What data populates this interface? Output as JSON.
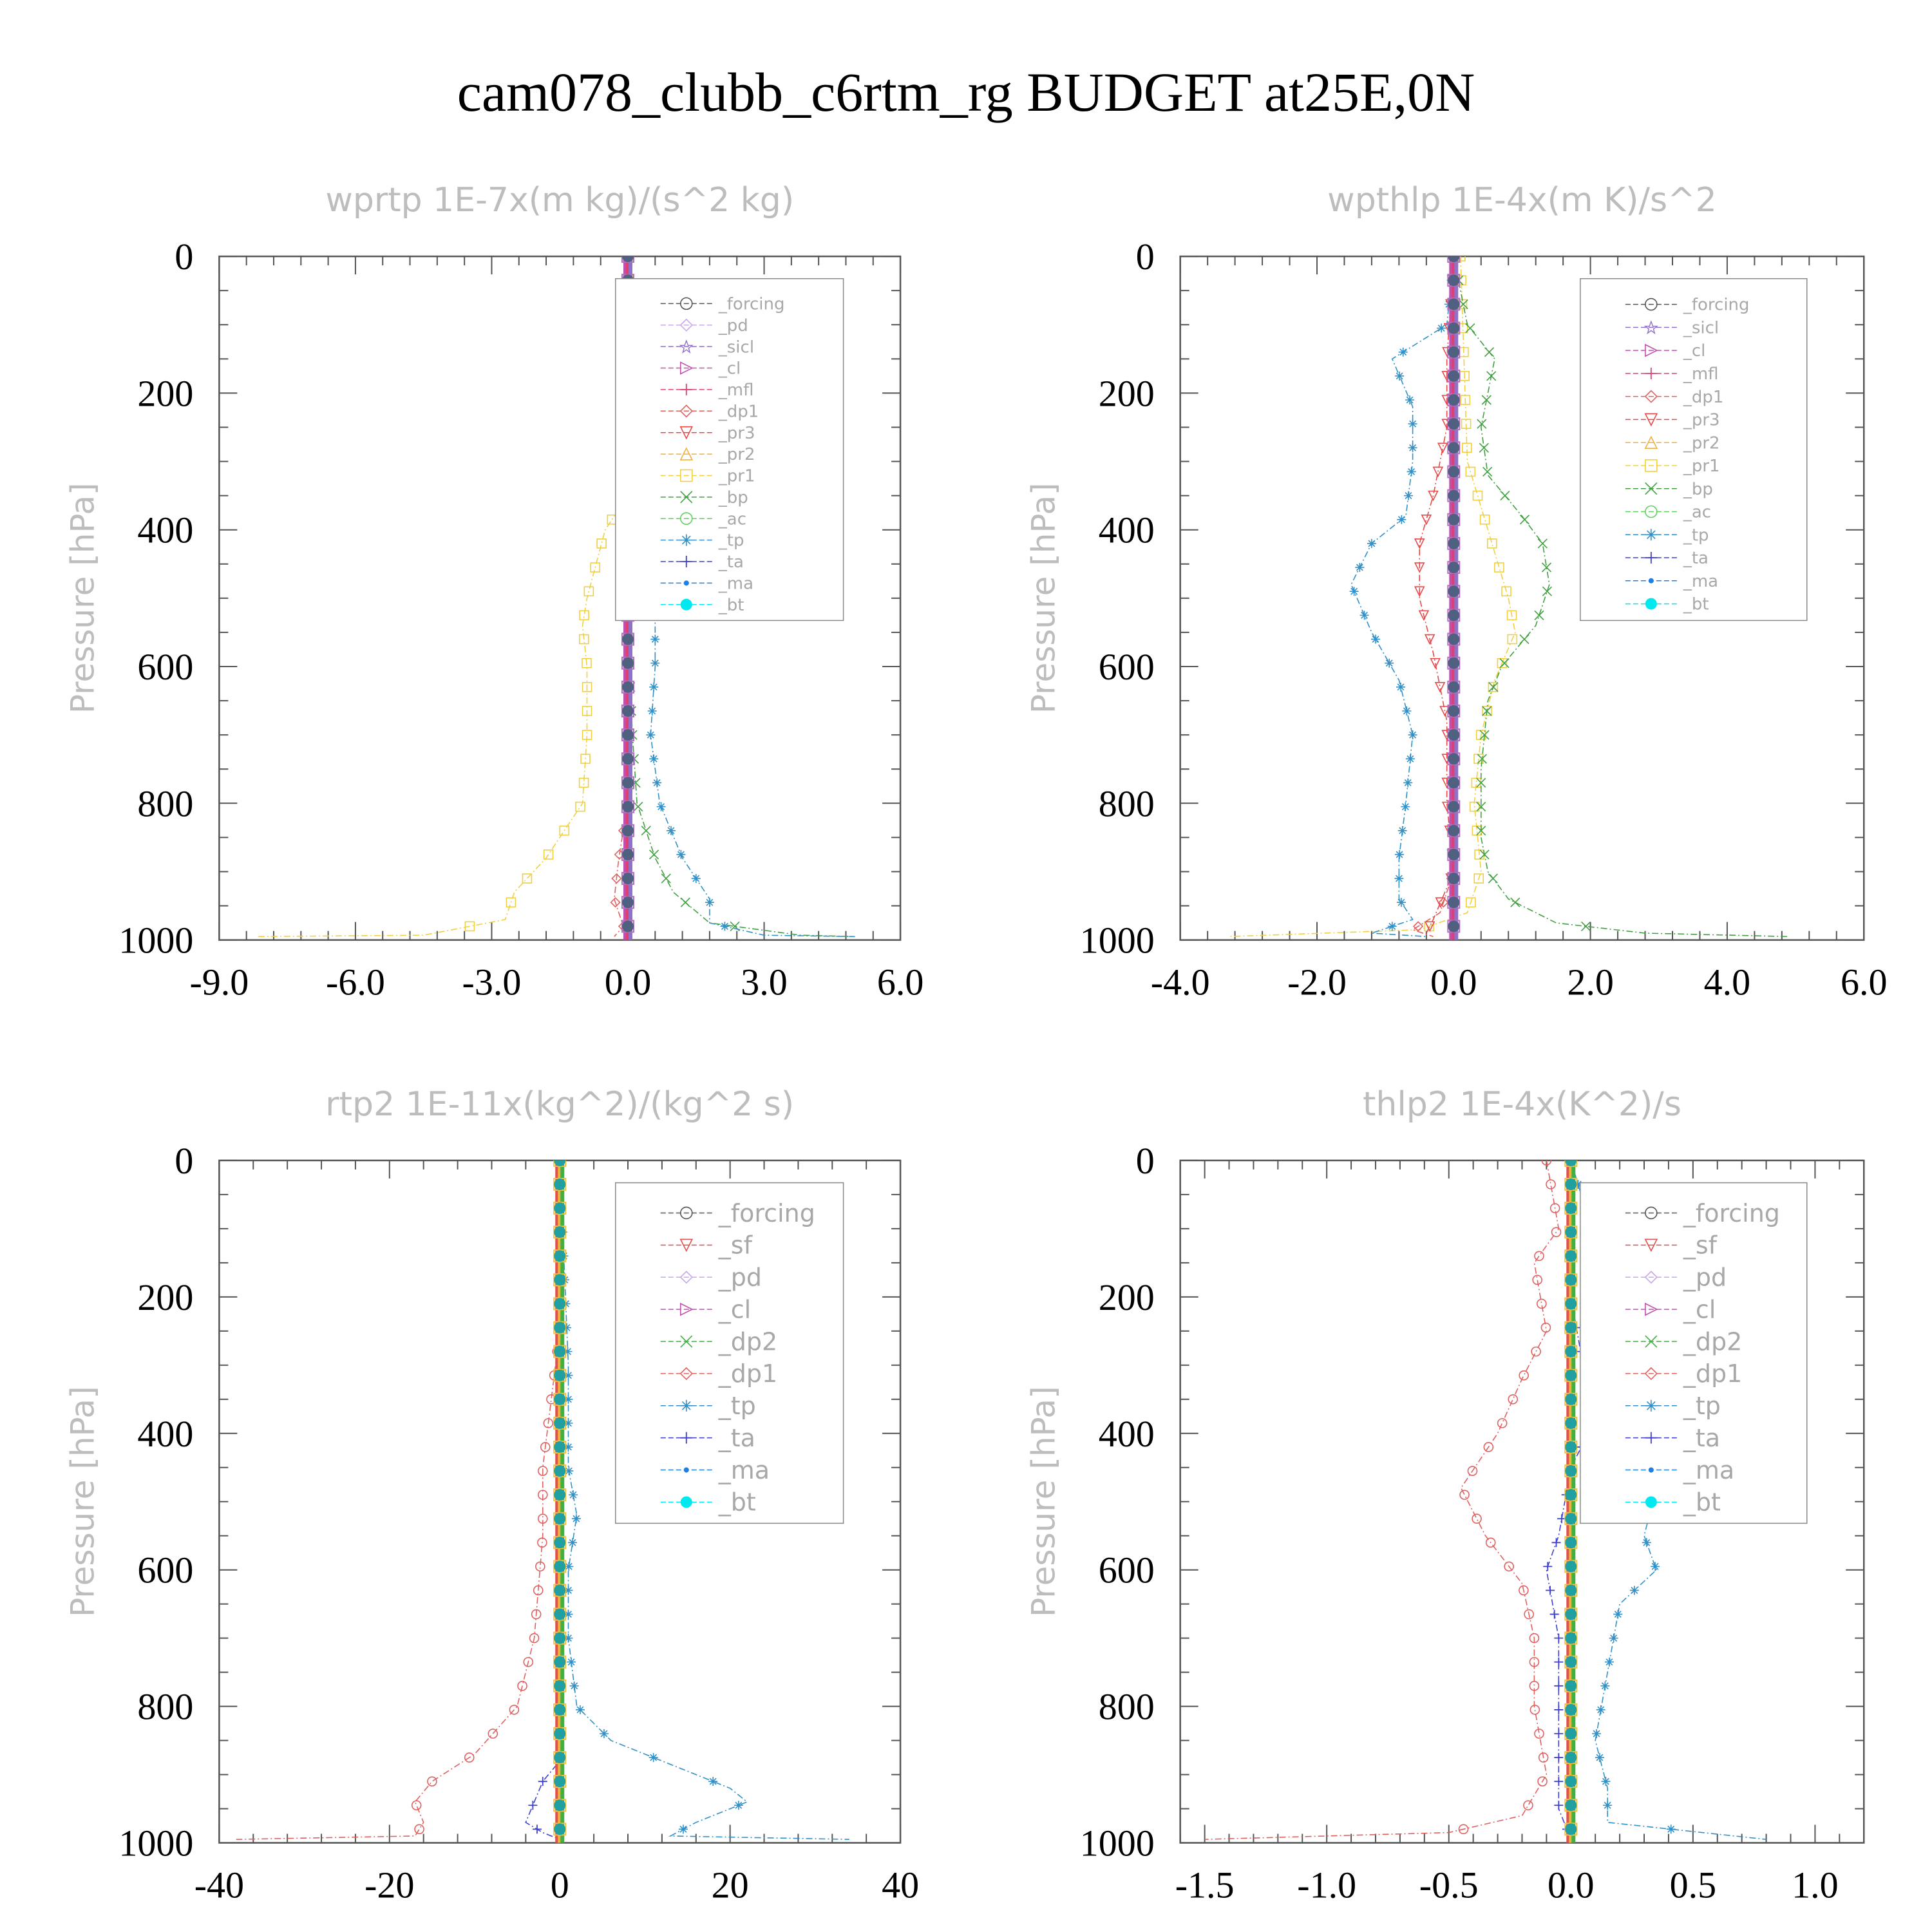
{
  "title": "cam078_clubb_c6rtm_rg  BUDGET at25E,0N",
  "series_colors": {
    "_forcing": "#555555",
    "_sf": "#e05050",
    "_pd": "#c8a8e8",
    "_sicl": "#9070c8",
    "_cl": "#c050b0",
    "_mfl": "#e04070",
    "_dp1": "#e06060",
    "_dp2": "#40b040",
    "_pr3": "#e84848",
    "_pr2": "#f0b040",
    "_pr1": "#f0d040",
    "_bp": "#40a040",
    "_ac": "#60d060",
    "_tp": "#3090c8",
    "_ta": "#4040d0",
    "_ma": "#2080e0",
    "_bt": "#00e8f0"
  },
  "chart_data": [
    {
      "type": "line",
      "title": "wprtp  1E-7x(m kg)/(s^2 kg)",
      "ylabel": "Pressure [hPa]",
      "xlim": [
        -9,
        6
      ],
      "ylim": [
        1000,
        0
      ],
      "xticks": [
        "-9.0",
        "-6.0",
        "-3.0",
        "0.0",
        "3.0",
        "6.0"
      ],
      "yticks": [
        "0",
        "200",
        "400",
        "600",
        "800",
        "1000"
      ],
      "legend": [
        "_forcing",
        "_pd",
        "_sicl",
        "_cl",
        "_mfl",
        "_dp1",
        "_pr3",
        "_pr2",
        "_pr1",
        "_bp",
        "_ac",
        "_tp",
        "_ta",
        "_ma",
        "_bt"
      ],
      "legend_font": 26,
      "series": [
        {
          "name": "_pr1",
          "style": "square",
          "points": [
            [
              0,
              0
            ],
            [
              0,
              350
            ],
            [
              -0.5,
              400
            ],
            [
              -0.7,
              450
            ],
            [
              -0.9,
              500
            ],
            [
              -1.0,
              540
            ],
            [
              -0.9,
              600
            ],
            [
              -0.9,
              700
            ],
            [
              -1.0,
              800
            ],
            [
              -1.8,
              880
            ],
            [
              -2.5,
              930
            ],
            [
              -2.7,
              970
            ],
            [
              -4.5,
              993
            ],
            [
              -8.2,
              995
            ]
          ]
        },
        {
          "name": "_bp",
          "style": "x",
          "points": [
            [
              0,
              0
            ],
            [
              0,
              550
            ],
            [
              0.1,
              700
            ],
            [
              0.2,
              800
            ],
            [
              0.6,
              880
            ],
            [
              1.0,
              930
            ],
            [
              1.8,
              975
            ],
            [
              3.8,
              993
            ],
            [
              5.0,
              995
            ]
          ]
        },
        {
          "name": "_tp",
          "style": "asterisk",
          "points": [
            [
              0,
              0
            ],
            [
              0,
              300
            ],
            [
              0.2,
              380
            ],
            [
              0.5,
              430
            ],
            [
              0.6,
              520
            ],
            [
              0.6,
              600
            ],
            [
              0.5,
              700
            ],
            [
              0.7,
              800
            ],
            [
              1.2,
              880
            ],
            [
              1.8,
              940
            ],
            [
              1.8,
              975
            ],
            [
              3.0,
              993
            ],
            [
              5.0,
              995
            ]
          ]
        },
        {
          "name": "_dp1",
          "style": "diamond",
          "points": [
            [
              0,
              0
            ],
            [
              0,
              800
            ],
            [
              -0.2,
              880
            ],
            [
              -0.3,
              940
            ],
            [
              -0.1,
              980
            ],
            [
              -0.3,
              995
            ]
          ]
        }
      ]
    },
    {
      "type": "line",
      "title": "wpthlp  1E-4x(m K)/s^2",
      "ylabel": "Pressure [hPa]",
      "xlim": [
        -4,
        6
      ],
      "ylim": [
        1000,
        0
      ],
      "xticks": [
        "-4.0",
        "-2.0",
        "0.0",
        "2.0",
        "4.0",
        "6.0"
      ],
      "yticks": [
        "0",
        "200",
        "400",
        "600",
        "800",
        "1000"
      ],
      "legend": [
        "_forcing",
        "_sicl",
        "_cl",
        "_mfl",
        "_dp1",
        "_pr3",
        "_pr2",
        "_pr1",
        "_bp",
        "_ac",
        "_tp",
        "_ta",
        "_ma",
        "_bt"
      ],
      "legend_font": 26,
      "series": [
        {
          "name": "_pr1",
          "style": "square",
          "points": [
            [
              0.1,
              0
            ],
            [
              0.2,
              300
            ],
            [
              0.5,
              400
            ],
            [
              0.8,
              500
            ],
            [
              0.9,
              550
            ],
            [
              0.6,
              620
            ],
            [
              0.4,
              700
            ],
            [
              0.3,
              800
            ],
            [
              0.4,
              900
            ],
            [
              0.2,
              960
            ],
            [
              -0.5,
              985
            ],
            [
              -3.3,
              995
            ]
          ]
        },
        {
          "name": "_bp",
          "style": "x",
          "points": [
            [
              0,
              0
            ],
            [
              0.2,
              100
            ],
            [
              0.6,
              150
            ],
            [
              0.4,
              250
            ],
            [
              0.5,
              320
            ],
            [
              1.0,
              380
            ],
            [
              1.3,
              420
            ],
            [
              1.4,
              480
            ],
            [
              1.2,
              540
            ],
            [
              0.7,
              600
            ],
            [
              0.5,
              650
            ],
            [
              0.4,
              750
            ],
            [
              0.4,
              850
            ],
            [
              0.5,
              900
            ],
            [
              0.8,
              940
            ],
            [
              1.5,
              975
            ],
            [
              2.8,
              990
            ],
            [
              4.9,
              995
            ]
          ]
        },
        {
          "name": "_tp",
          "style": "asterisk",
          "points": [
            [
              0,
              0
            ],
            [
              -0.1,
              100
            ],
            [
              -0.9,
              150
            ],
            [
              -0.6,
              220
            ],
            [
              -0.6,
              300
            ],
            [
              -0.7,
              380
            ],
            [
              -1.2,
              420
            ],
            [
              -1.5,
              480
            ],
            [
              -1.2,
              550
            ],
            [
              -0.8,
              620
            ],
            [
              -0.6,
              700
            ],
            [
              -0.7,
              800
            ],
            [
              -0.8,
              880
            ],
            [
              -0.8,
              940
            ],
            [
              -0.6,
              970
            ],
            [
              -1.2,
              990
            ],
            [
              -0.4,
              995
            ]
          ]
        },
        {
          "name": "_pr3",
          "style": "triangle-down",
          "points": [
            [
              0,
              0
            ],
            [
              -0.1,
              150
            ],
            [
              -0.1,
              250
            ],
            [
              -0.3,
              350
            ],
            [
              -0.5,
              420
            ],
            [
              -0.5,
              500
            ],
            [
              -0.3,
              580
            ],
            [
              -0.1,
              680
            ],
            [
              -0.1,
              800
            ],
            [
              0,
              900
            ],
            [
              -0.3,
              970
            ],
            [
              -0.4,
              990
            ]
          ]
        },
        {
          "name": "_dp1",
          "style": "diamond",
          "points": [
            [
              0,
              0
            ],
            [
              0,
              900
            ],
            [
              -0.2,
              960
            ],
            [
              -0.6,
              985
            ],
            [
              -0.3,
              995
            ]
          ]
        }
      ]
    },
    {
      "type": "line",
      "title": "rtp2  1E-11x(kg^2)/(kg^2 s)",
      "ylabel": "Pressure [hPa]",
      "xlim": [
        -40,
        40
      ],
      "ylim": [
        1000,
        0
      ],
      "xticks": [
        "-40",
        "-20",
        "0",
        "20",
        "40"
      ],
      "yticks": [
        "0",
        "200",
        "400",
        "600",
        "800",
        "1000"
      ],
      "legend": [
        "_forcing",
        "_sf",
        "_pd",
        "_cl",
        "_dp2",
        "_dp1",
        "_tp",
        "_ta",
        "_ma",
        "_bt"
      ],
      "legend_font": 38,
      "series": [
        {
          "name": "_dp1",
          "style": "circle",
          "points": [
            [
              0,
              0
            ],
            [
              0,
              250
            ],
            [
              -1,
              350
            ],
            [
              -2,
              450
            ],
            [
              -2,
              550
            ],
            [
              -3,
              700
            ],
            [
              -5,
              800
            ],
            [
              -10,
              870
            ],
            [
              -15,
              910
            ],
            [
              -17,
              940
            ],
            [
              -16,
              970
            ],
            [
              -17,
              990
            ],
            [
              -38,
              995
            ]
          ]
        },
        {
          "name": "_tp",
          "style": "asterisk",
          "points": [
            [
              0,
              0
            ],
            [
              1,
              300
            ],
            [
              1,
              450
            ],
            [
              2,
              520
            ],
            [
              1,
              600
            ],
            [
              1,
              700
            ],
            [
              2,
              800
            ],
            [
              6,
              850
            ],
            [
              12,
              880
            ],
            [
              20,
              920
            ],
            [
              22,
              940
            ],
            [
              16,
              970
            ],
            [
              13,
              990
            ],
            [
              34,
              995
            ]
          ]
        },
        {
          "name": "_ta",
          "style": "plus",
          "points": [
            [
              0,
              0
            ],
            [
              0,
              880
            ],
            [
              -2,
              910
            ],
            [
              -3,
              940
            ],
            [
              -4,
              970
            ],
            [
              -2,
              985
            ],
            [
              0,
              995
            ]
          ]
        }
      ]
    },
    {
      "type": "line",
      "title": "thlp2  1E-4x(K^2)/s",
      "ylabel": "Pressure [hPa]",
      "xlim": [
        -1.6,
        1.2
      ],
      "ylim": [
        1000,
        0
      ],
      "xticks": [
        "-1.5",
        "-1.0",
        "-0.5",
        "0.0",
        "0.5",
        "1.0"
      ],
      "yticks": [
        "0",
        "200",
        "400",
        "600",
        "800",
        "1000"
      ],
      "legend": [
        "_forcing",
        "_sf",
        "_pd",
        "_cl",
        "_dp2",
        "_dp1",
        "_tp",
        "_ta",
        "_ma",
        "_bt"
      ],
      "legend_font": 38,
      "series": [
        {
          "name": "_dp1",
          "style": "circle",
          "points": [
            [
              -0.1,
              0
            ],
            [
              -0.05,
              100
            ],
            [
              -0.15,
              150
            ],
            [
              -0.1,
              250
            ],
            [
              -0.2,
              320
            ],
            [
              -0.3,
              400
            ],
            [
              -0.45,
              480
            ],
            [
              -0.35,
              550
            ],
            [
              -0.2,
              620
            ],
            [
              -0.15,
              700
            ],
            [
              -0.15,
              800
            ],
            [
              -0.1,
              900
            ],
            [
              -0.2,
              960
            ],
            [
              -0.5,
              985
            ],
            [
              -1.5,
              995
            ]
          ]
        },
        {
          "name": "_tp",
          "style": "asterisk",
          "points": [
            [
              0,
              0
            ],
            [
              0.1,
              120
            ],
            [
              0.05,
              200
            ],
            [
              0.1,
              320
            ],
            [
              0.2,
              400
            ],
            [
              0.35,
              480
            ],
            [
              0.3,
              550
            ],
            [
              0.35,
              600
            ],
            [
              0.2,
              650
            ],
            [
              0.15,
              750
            ],
            [
              0.1,
              850
            ],
            [
              0.15,
              920
            ],
            [
              0.15,
              970
            ],
            [
              0.8,
              995
            ]
          ]
        },
        {
          "name": "_ta",
          "style": "plus",
          "points": [
            [
              0,
              0
            ],
            [
              0,
              200
            ],
            [
              0.05,
              300
            ],
            [
              0.1,
              380
            ],
            [
              0,
              450
            ],
            [
              -0.05,
              550
            ],
            [
              -0.1,
              600
            ],
            [
              -0.05,
              700
            ],
            [
              -0.05,
              850
            ],
            [
              -0.05,
              950
            ],
            [
              0,
              995
            ]
          ]
        }
      ]
    }
  ]
}
